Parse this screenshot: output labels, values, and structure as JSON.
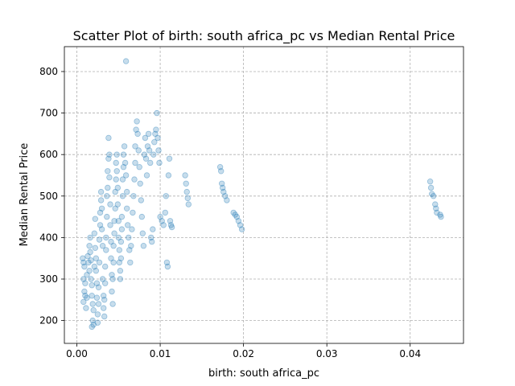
{
  "chart_data": {
    "type": "scatter",
    "title": "Scatter Plot of birth: south africa_pc vs Median Rental Price",
    "xlabel": "birth: south africa_pc",
    "ylabel": "Median Rental Price",
    "xlim": [
      -0.0015,
      0.0464
    ],
    "ylim": [
      145,
      860
    ],
    "xticks": [
      0.0,
      0.01,
      0.02,
      0.03,
      0.04
    ],
    "xtick_labels": [
      "0.00",
      "0.01",
      "0.02",
      "0.03",
      "0.04"
    ],
    "yticks": [
      200,
      300,
      400,
      500,
      600,
      700,
      800
    ],
    "ytick_labels": [
      "200",
      "300",
      "400",
      "500",
      "600",
      "700",
      "800"
    ],
    "grid": true,
    "legend": "none",
    "marker_color": "#1f77b4",
    "marker_alpha": 0.25,
    "series": [
      {
        "points": [
          [
            0.0007,
            350
          ],
          [
            0.0008,
            340
          ],
          [
            0.0009,
            330
          ],
          [
            0.0008,
            300
          ],
          [
            0.001,
            290
          ],
          [
            0.0009,
            270
          ],
          [
            0.001,
            260
          ],
          [
            0.0008,
            245
          ],
          [
            0.0011,
            230
          ],
          [
            0.0012,
            255
          ],
          [
            0.0012,
            310
          ],
          [
            0.0013,
            355
          ],
          [
            0.0014,
            340
          ],
          [
            0.0015,
            320
          ],
          [
            0.0015,
            380
          ],
          [
            0.0016,
            400
          ],
          [
            0.0016,
            365
          ],
          [
            0.0017,
            345
          ],
          [
            0.0017,
            300
          ],
          [
            0.0018,
            285
          ],
          [
            0.0018,
            260
          ],
          [
            0.0019,
            240
          ],
          [
            0.0019,
            200
          ],
          [
            0.0018,
            185
          ],
          [
            0.002,
            190
          ],
          [
            0.002,
            225
          ],
          [
            0.0021,
            330
          ],
          [
            0.0021,
            410
          ],
          [
            0.0022,
            445
          ],
          [
            0.0022,
            375
          ],
          [
            0.0023,
            350
          ],
          [
            0.0023,
            320
          ],
          [
            0.0024,
            290
          ],
          [
            0.0024,
            255
          ],
          [
            0.0025,
            215
          ],
          [
            0.0025,
            195
          ],
          [
            0.0026,
            240
          ],
          [
            0.0026,
            280
          ],
          [
            0.0027,
            340
          ],
          [
            0.0027,
            395
          ],
          [
            0.0028,
            430
          ],
          [
            0.0028,
            460
          ],
          [
            0.0029,
            490
          ],
          [
            0.0029,
            510
          ],
          [
            0.003,
            470
          ],
          [
            0.003,
            420
          ],
          [
            0.0031,
            380
          ],
          [
            0.0031,
            300
          ],
          [
            0.0032,
            260
          ],
          [
            0.0032,
            230
          ],
          [
            0.0033,
            210
          ],
          [
            0.0033,
            250
          ],
          [
            0.0034,
            290
          ],
          [
            0.0034,
            330
          ],
          [
            0.0035,
            370
          ],
          [
            0.0035,
            400
          ],
          [
            0.0036,
            450
          ],
          [
            0.0036,
            500
          ],
          [
            0.0037,
            520
          ],
          [
            0.0037,
            560
          ],
          [
            0.0038,
            590
          ],
          [
            0.0038,
            640
          ],
          [
            0.0039,
            600
          ],
          [
            0.0039,
            545
          ],
          [
            0.004,
            480
          ],
          [
            0.004,
            430
          ],
          [
            0.0041,
            390
          ],
          [
            0.0041,
            350
          ],
          [
            0.0042,
            310
          ],
          [
            0.0042,
            270
          ],
          [
            0.0043,
            240
          ],
          [
            0.0043,
            300
          ],
          [
            0.0044,
            340
          ],
          [
            0.0044,
            380
          ],
          [
            0.0045,
            410
          ],
          [
            0.0045,
            440
          ],
          [
            0.0046,
            470
          ],
          [
            0.0046,
            510
          ],
          [
            0.0047,
            540
          ],
          [
            0.0047,
            580
          ],
          [
            0.0048,
            600
          ],
          [
            0.0048,
            560
          ],
          [
            0.0049,
            520
          ],
          [
            0.0049,
            480
          ],
          [
            0.005,
            440
          ],
          [
            0.005,
            400
          ],
          [
            0.0051,
            370
          ],
          [
            0.0051,
            340
          ],
          [
            0.0052,
            320
          ],
          [
            0.0052,
            300
          ],
          [
            0.0053,
            350
          ],
          [
            0.0053,
            390
          ],
          [
            0.0054,
            420
          ],
          [
            0.0054,
            450
          ],
          [
            0.0055,
            500
          ],
          [
            0.0055,
            540
          ],
          [
            0.0056,
            570
          ],
          [
            0.0056,
            600
          ],
          [
            0.0057,
            620
          ],
          [
            0.0058,
            580
          ],
          [
            0.0059,
            550
          ],
          [
            0.0059,
            825
          ],
          [
            0.006,
            510
          ],
          [
            0.006,
            470
          ],
          [
            0.0061,
            430
          ],
          [
            0.0062,
            400
          ],
          [
            0.0063,
            370
          ],
          [
            0.0064,
            340
          ],
          [
            0.0065,
            380
          ],
          [
            0.0066,
            420
          ],
          [
            0.0067,
            460
          ],
          [
            0.0068,
            500
          ],
          [
            0.0069,
            540
          ],
          [
            0.007,
            580
          ],
          [
            0.007,
            620
          ],
          [
            0.0071,
            660
          ],
          [
            0.0072,
            680
          ],
          [
            0.0073,
            650
          ],
          [
            0.0074,
            610
          ],
          [
            0.0075,
            570
          ],
          [
            0.0076,
            530
          ],
          [
            0.0077,
            490
          ],
          [
            0.0078,
            450
          ],
          [
            0.0079,
            410
          ],
          [
            0.008,
            380
          ],
          [
            0.0081,
            600
          ],
          [
            0.0082,
            640
          ],
          [
            0.0083,
            590
          ],
          [
            0.0084,
            550
          ],
          [
            0.0085,
            620
          ],
          [
            0.0086,
            650
          ],
          [
            0.0087,
            610
          ],
          [
            0.0088,
            580
          ],
          [
            0.0089,
            400
          ],
          [
            0.009,
            390
          ],
          [
            0.0091,
            420
          ],
          [
            0.0092,
            600
          ],
          [
            0.0093,
            630
          ],
          [
            0.0094,
            650
          ],
          [
            0.0095,
            660
          ],
          [
            0.0096,
            700
          ],
          [
            0.0097,
            640
          ],
          [
            0.0098,
            610
          ],
          [
            0.0099,
            580
          ],
          [
            0.01,
            450
          ],
          [
            0.0102,
            440
          ],
          [
            0.0104,
            430
          ],
          [
            0.0106,
            460
          ],
          [
            0.0107,
            500
          ],
          [
            0.0108,
            340
          ],
          [
            0.0109,
            330
          ],
          [
            0.011,
            550
          ],
          [
            0.0111,
            590
          ],
          [
            0.0112,
            440
          ],
          [
            0.0113,
            430
          ],
          [
            0.0114,
            425
          ],
          [
            0.013,
            550
          ],
          [
            0.0131,
            530
          ],
          [
            0.0132,
            510
          ],
          [
            0.0133,
            495
          ],
          [
            0.0134,
            480
          ],
          [
            0.0172,
            570
          ],
          [
            0.0173,
            560
          ],
          [
            0.0174,
            530
          ],
          [
            0.0175,
            520
          ],
          [
            0.0176,
            510
          ],
          [
            0.0178,
            500
          ],
          [
            0.018,
            490
          ],
          [
            0.0188,
            460
          ],
          [
            0.019,
            455
          ],
          [
            0.0192,
            450
          ],
          [
            0.0194,
            440
          ],
          [
            0.0196,
            430
          ],
          [
            0.0198,
            420
          ],
          [
            0.0424,
            535
          ],
          [
            0.0425,
            520
          ],
          [
            0.0426,
            505
          ],
          [
            0.0428,
            500
          ],
          [
            0.043,
            480
          ],
          [
            0.0431,
            470
          ],
          [
            0.0432,
            460
          ],
          [
            0.0436,
            455
          ],
          [
            0.0437,
            450
          ]
        ]
      }
    ]
  }
}
